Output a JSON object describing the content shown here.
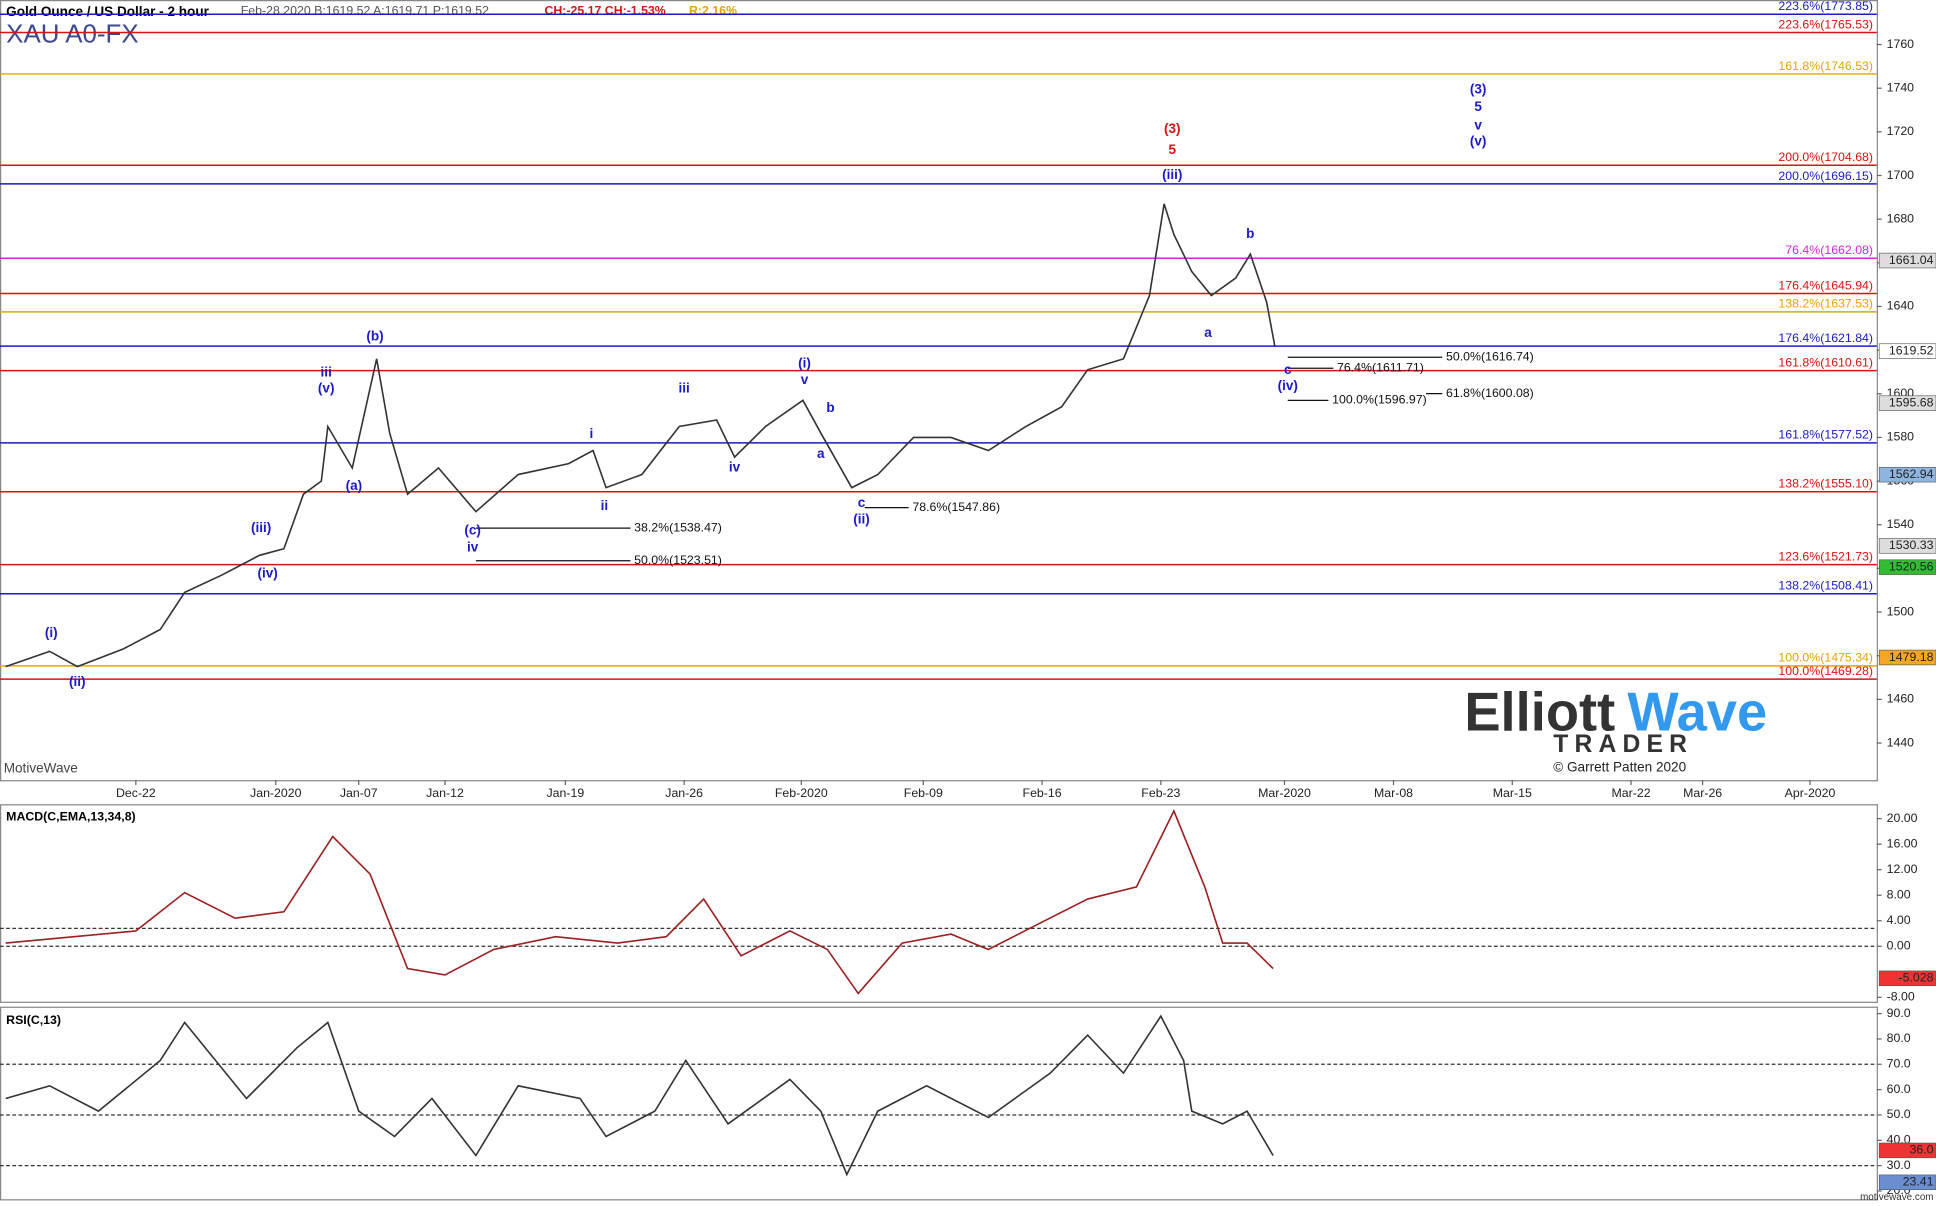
{
  "chart_data": [
    {
      "type": "line",
      "title": "Gold Ounce / US Dollar - 2 hour",
      "subtitle": "XAU A0-FX",
      "quote": "Feb-28 2020  B:1619.52  A:1619.71  P:1619.52",
      "change": "CH:-25.17  CH:-1.53%",
      "range": "R:2.16%",
      "xlim": [
        -8.35,
        107
      ],
      "ylim": [
        1423,
        1780.4
      ],
      "yticks": [
        1440,
        1460,
        1480,
        1500,
        1520,
        1540,
        1560,
        1580,
        1600,
        1620,
        1640,
        1660,
        1680,
        1700,
        1720,
        1740,
        1760
      ],
      "xticks": [
        {
          "value": 0,
          "label": "Dec-22"
        },
        {
          "value": 8.6,
          "label": "Jan-2020"
        },
        {
          "value": 13.7,
          "label": "Jan-07"
        },
        {
          "value": 19,
          "label": "Jan-12"
        },
        {
          "value": 26.4,
          "label": "Jan-19"
        },
        {
          "value": 33.7,
          "label": "Jan-26"
        },
        {
          "value": 40.9,
          "label": "Feb-2020"
        },
        {
          "value": 48.4,
          "label": "Feb-09"
        },
        {
          "value": 55.7,
          "label": "Feb-16"
        },
        {
          "value": 63,
          "label": "Feb-23"
        },
        {
          "value": 70.6,
          "label": "Mar-2020"
        },
        {
          "value": 77.3,
          "label": "Mar-08"
        },
        {
          "value": 84.6,
          "label": "Mar-15"
        },
        {
          "value": 91.9,
          "label": "Mar-22"
        },
        {
          "value": 96.3,
          "label": "Mar-26"
        },
        {
          "value": 102.9,
          "label": "Apr-2020"
        }
      ],
      "color": "#333333",
      "x": [
        -8.0,
        -5.3,
        -3.6,
        -0.8,
        1.5,
        3.0,
        5.3,
        7.6,
        9.1,
        10.3,
        11.4,
        11.8,
        13.3,
        14.8,
        15.6,
        16.7,
        18.6,
        20.9,
        23.5,
        26.6,
        28.1,
        28.9,
        31.1,
        33.4,
        35.7,
        36.8,
        38.7,
        41.0,
        42.1,
        44.0,
        45.6,
        47.8,
        50.1,
        52.4,
        54.7,
        56.9,
        58.5,
        60.7,
        62.3,
        63.2,
        63.8,
        64.9,
        66.1,
        67.6,
        68.5,
        69.5,
        70.0
      ],
      "values": [
        1475,
        1482,
        1475,
        1483,
        1492,
        1509,
        1517,
        1526,
        1529,
        1554,
        1560,
        1585,
        1566,
        1616,
        1582,
        1554,
        1566,
        1546,
        1563,
        1568,
        1574,
        1557,
        1563,
        1585,
        1588,
        1571,
        1585,
        1597,
        1582,
        1557,
        1563,
        1580,
        1580,
        1574,
        1585,
        1594,
        1611,
        1616,
        1645,
        1687,
        1673,
        1656,
        1645,
        1653,
        1664,
        1642,
        1622
      ],
      "levels": [
        {
          "label": "223.6%(1773.85)",
          "value": 1773.85,
          "color": "#1a1acc"
        },
        {
          "label": "223.6%(1765.53)",
          "value": 1765.53,
          "color": "#dd1111"
        },
        {
          "label": "161.8%(1746.53)",
          "value": 1746.53,
          "color": "#e8a400"
        },
        {
          "label": "200.0%(1704.68)",
          "value": 1704.68,
          "color": "#dd1111"
        },
        {
          "label": "200.0%(1696.15)",
          "value": 1696.15,
          "color": "#1a1acc"
        },
        {
          "label": "76.4%(1662.08)",
          "value": 1662.08,
          "color": "#dd22dd"
        },
        {
          "label": "176.4%(1645.94)",
          "value": 1645.94,
          "color": "#dd1111"
        },
        {
          "label": "138.2%(1637.53)",
          "value": 1637.53,
          "color": "#e8a400"
        },
        {
          "label": "176.4%(1621.84)",
          "value": 1621.84,
          "color": "#1a1acc"
        },
        {
          "label": "161.8%(1610.61)",
          "value": 1610.61,
          "color": "#dd1111"
        },
        {
          "label": "161.8%(1577.52)",
          "value": 1577.52,
          "color": "#1a1acc"
        },
        {
          "label": "138.2%(1555.10)",
          "value": 1555.1,
          "color": "#dd1111"
        },
        {
          "label": "123.6%(1521.73)",
          "value": 1521.73,
          "color": "#dd1111"
        },
        {
          "label": "138.2%(1508.41)",
          "value": 1508.41,
          "color": "#1a1acc"
        },
        {
          "label": "100.0%(1475.34)",
          "value": 1475.34,
          "color": "#e8a400"
        },
        {
          "label": "100.0%(1469.28)",
          "value": 1469.28,
          "color": "#dd1111"
        }
      ],
      "retracements": [
        {
          "label": "38.2%(1538.47)",
          "value": 1538.47,
          "x": [
            20.9,
            30.4
          ]
        },
        {
          "label": "50.0%(1523.51)",
          "value": 1523.51,
          "x": [
            20.9,
            30.4
          ]
        },
        {
          "label": "78.6%(1547.86)",
          "value": 1547.86,
          "x": [
            44.8,
            47.5
          ]
        },
        {
          "label": "50.0%(1616.74)",
          "value": 1616.74,
          "x": [
            70.8,
            80.3
          ]
        },
        {
          "label": "76.4%(1611.71)",
          "value": 1611.71,
          "x": [
            70.8,
            73.6
          ]
        },
        {
          "label": "61.8%(1600.08)",
          "value": 1600.08,
          "x": [
            79.3,
            80.3
          ]
        },
        {
          "label": "100.0%(1596.97)",
          "value": 1596.97,
          "x": [
            70.8,
            73.3
          ]
        }
      ],
      "price_tags": [
        {
          "label": "1661.04",
          "value": 1661.04,
          "color": "#dddddd"
        },
        {
          "label": "1619.52",
          "value": 1619.52,
          "color": "#ffffff"
        },
        {
          "label": "1595.68",
          "value": 1595.68,
          "color": "#dddddd"
        },
        {
          "label": "1562.94",
          "value": 1562.94,
          "color": "#8fb4e0"
        },
        {
          "label": "1530.33",
          "value": 1530.33,
          "color": "#dddddd"
        },
        {
          "label": "1520.56",
          "value": 1520.56,
          "color": "#33bb33"
        },
        {
          "label": "1479.18",
          "value": 1479.18,
          "color": "#f5a623"
        }
      ],
      "annotations": [
        {
          "text": "(3)",
          "x": 63.7,
          "y": 1721,
          "color": "#dd1111"
        },
        {
          "text": "5",
          "x": 63.7,
          "y": 1711.4,
          "color": "#dd1111"
        },
        {
          "text": "(iii)",
          "x": 63.7,
          "y": 1700,
          "color": "#1a1acc"
        },
        {
          "text": "(3)",
          "x": 82.5,
          "y": 1739.1,
          "color": "#1a1acc"
        },
        {
          "text": "5",
          "x": 82.5,
          "y": 1731.2,
          "color": "#1a1acc"
        },
        {
          "text": "v",
          "x": 82.5,
          "y": 1722.7,
          "color": "#1a1acc"
        },
        {
          "text": "(v)",
          "x": 82.5,
          "y": 1715.3,
          "color": "#1a1acc"
        },
        {
          "text": "b",
          "x": 68.5,
          "y": 1673,
          "color": "#1a1acc"
        },
        {
          "text": "a",
          "x": 65.9,
          "y": 1627.7,
          "color": "#1a1acc"
        },
        {
          "text": "c",
          "x": 70.8,
          "y": 1610.7,
          "color": "#1a1acc"
        },
        {
          "text": "(iv)",
          "x": 70.8,
          "y": 1603.4,
          "color": "#1a1acc"
        },
        {
          "text": "(i)",
          "x": -5.2,
          "y": 1490.3,
          "color": "#1a1acc"
        },
        {
          "text": "(ii)",
          "x": -3.6,
          "y": 1467.7,
          "color": "#1a1acc"
        },
        {
          "text": "(iii)",
          "x": 7.7,
          "y": 1538.4,
          "color": "#1a1acc"
        },
        {
          "text": "(iv)",
          "x": 8.1,
          "y": 1517.4,
          "color": "#1a1acc"
        },
        {
          "text": "iii",
          "x": 11.7,
          "y": 1609.6,
          "color": "#1a1acc"
        },
        {
          "text": "(v)",
          "x": 11.7,
          "y": 1602.2,
          "color": "#1a1acc"
        },
        {
          "text": "(b)",
          "x": 14.7,
          "y": 1626,
          "color": "#1a1acc"
        },
        {
          "text": "(a)",
          "x": 13.4,
          "y": 1557.6,
          "color": "#1a1acc"
        },
        {
          "text": "(c)",
          "x": 20.7,
          "y": 1537.2,
          "color": "#1a1acc"
        },
        {
          "text": "iv",
          "x": 20.7,
          "y": 1529.3,
          "color": "#1a1acc"
        },
        {
          "text": "i",
          "x": 28.0,
          "y": 1581.3,
          "color": "#1a1acc"
        },
        {
          "text": "ii",
          "x": 28.8,
          "y": 1548.5,
          "color": "#1a1acc"
        },
        {
          "text": "iii",
          "x": 33.7,
          "y": 1602.2,
          "color": "#1a1acc"
        },
        {
          "text": "iv",
          "x": 36.8,
          "y": 1566.0,
          "color": "#1a1acc"
        },
        {
          "text": "(i)",
          "x": 41.1,
          "y": 1613.6,
          "color": "#1a1acc"
        },
        {
          "text": "v",
          "x": 41.1,
          "y": 1606.2,
          "color": "#1a1acc"
        },
        {
          "text": "b",
          "x": 42.7,
          "y": 1593.2,
          "color": "#1a1acc"
        },
        {
          "text": "a",
          "x": 42.1,
          "y": 1572.3,
          "color": "#1a1acc"
        },
        {
          "text": "c",
          "x": 44.6,
          "y": 1549.7,
          "color": "#1a1acc"
        },
        {
          "text": "(ii)",
          "x": 44.6,
          "y": 1542.3,
          "color": "#1a1acc"
        }
      ]
    },
    {
      "type": "line",
      "title": "MACD(C,EMA,13,34,8)",
      "xlim": [
        -8.35,
        107
      ],
      "ylim": [
        -8.79,
        22.17
      ],
      "yticks": [
        {
          "value": -8,
          "label": "-8.00"
        },
        {
          "value": 0,
          "label": "0.00"
        },
        {
          "value": 4,
          "label": "4.00"
        },
        {
          "value": 8,
          "label": "8.00"
        },
        {
          "value": 12,
          "label": "12.00"
        },
        {
          "value": 16,
          "label": "16.00"
        },
        {
          "value": 20,
          "label": "20.00"
        }
      ],
      "levels": [
        0,
        2.8
      ],
      "color": "#9b2020",
      "x": [
        -8.0,
        -3.8,
        0,
        3.0,
        6.1,
        9.1,
        12.1,
        14.4,
        16.7,
        19.0,
        22.0,
        25.8,
        29.6,
        32.6,
        34.9,
        37.2,
        40.2,
        42.5,
        44.4,
        47.1,
        50.1,
        52.4,
        55.4,
        58.5,
        61.5,
        63.8,
        65.7,
        66.8,
        68.3,
        69.9
      ],
      "values": [
        0.5,
        1.5,
        2.4,
        8.4,
        4.4,
        5.4,
        17.2,
        11.3,
        -3.5,
        -4.5,
        -0.5,
        1.5,
        0.5,
        1.5,
        7.4,
        -1.5,
        2.4,
        -0.5,
        -7.4,
        0.5,
        1.9,
        -0.5,
        3.4,
        7.4,
        9.3,
        21.2,
        9.3,
        0.5,
        0.5,
        -3.5
      ],
      "price_tags": [
        {
          "label": "-5.028",
          "value": -5.028,
          "color": "#ee3333"
        }
      ]
    },
    {
      "type": "line",
      "title": "RSI(C,13)",
      "xlim": [
        -8.35,
        107
      ],
      "ylim": [
        16.5,
        92.5
      ],
      "yticks": [
        {
          "value": 20,
          "label": "20.0"
        },
        {
          "value": 30,
          "label": "30.0"
        },
        {
          "value": 40,
          "label": "40.0"
        },
        {
          "value": 50,
          "label": "50.0"
        },
        {
          "value": 60,
          "label": "60.0"
        },
        {
          "value": 70,
          "label": "70.0"
        },
        {
          "value": 80,
          "label": "80.0"
        },
        {
          "value": 90,
          "label": "90.0"
        }
      ],
      "levels": [
        30,
        50,
        70
      ],
      "color": "#333333",
      "x": [
        -8.0,
        -5.3,
        -2.3,
        1.5,
        3.0,
        6.8,
        9.9,
        11.8,
        13.7,
        15.9,
        18.2,
        20.9,
        23.5,
        27.3,
        28.9,
        31.9,
        33.8,
        36.4,
        40.2,
        42.1,
        43.7,
        45.6,
        48.6,
        52.4,
        56.2,
        58.5,
        60.7,
        63.0,
        64.4,
        64.9,
        66.8,
        68.3,
        69.9
      ],
      "values": [
        56.5,
        61.5,
        51.5,
        71.5,
        86.5,
        56.5,
        76.5,
        86.5,
        51.5,
        41.5,
        56.5,
        34,
        61.5,
        56.5,
        41.5,
        51.5,
        71.5,
        46.5,
        64,
        51.5,
        26.5,
        51.5,
        61.5,
        49,
        66.5,
        81.5,
        66.5,
        89,
        71.5,
        51.5,
        46.5,
        51.5,
        34
      ],
      "price_tags": [
        {
          "label": "36.0",
          "value": 36.0,
          "color": "#ee3333"
        },
        {
          "label": "23.41",
          "value": 23.41,
          "color": "#6a8fd0"
        }
      ]
    }
  ],
  "branding": {
    "platform": "MotiveWave",
    "logo_a": "Elliott",
    "logo_b": "Wave",
    "logo_c": "TRADER",
    "copyright": "© Garrett Patten 2020",
    "site": "motivewave.com"
  }
}
